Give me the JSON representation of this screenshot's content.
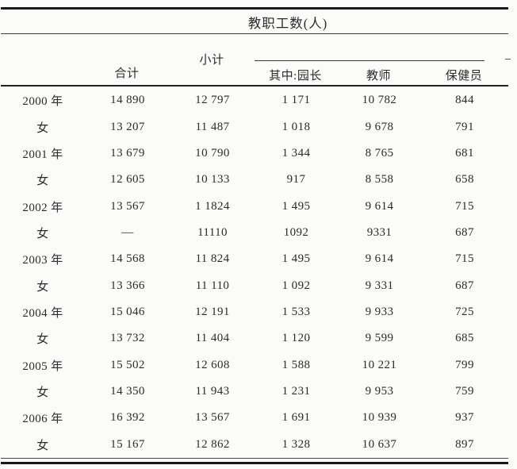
{
  "header": {
    "title": "教职工数(人)",
    "col_total": "合计",
    "col_subtotal": "小计",
    "col_director": "其中:园长",
    "col_teacher": "教师",
    "col_health": "保健员"
  },
  "rows": [
    {
      "label": "2000 年",
      "total": "14 890",
      "subtotal": "12 797",
      "director": "1 171",
      "teacher": "10 782",
      "health": "844"
    },
    {
      "label": "女",
      "total": "13 207",
      "subtotal": "11 487",
      "director": "1 018",
      "teacher": "9 678",
      "health": "791"
    },
    {
      "label": "2001 年",
      "total": "13 679",
      "subtotal": "10 790",
      "director": "1 344",
      "teacher": "8 765",
      "health": "681"
    },
    {
      "label": "女",
      "total": "12 605",
      "subtotal": "10 133",
      "director": "917",
      "teacher": "8 558",
      "health": "658"
    },
    {
      "label": "2002 年",
      "total": "13 567",
      "subtotal": "1 1824",
      "director": "1 495",
      "teacher": "9 614",
      "health": "715"
    },
    {
      "label": "女",
      "total": "—",
      "subtotal": "11110",
      "director": "1092",
      "teacher": "9331",
      "health": "687"
    },
    {
      "label": "2003 年",
      "total": "14 568",
      "subtotal": "11 824",
      "director": "1 495",
      "teacher": "9 614",
      "health": "715"
    },
    {
      "label": "女",
      "total": "13 366",
      "subtotal": "11 110",
      "director": "1 092",
      "teacher": "9 331",
      "health": "687"
    },
    {
      "label": "2004 年",
      "total": "15 046",
      "subtotal": "12 191",
      "director": "1 533",
      "teacher": "9 933",
      "health": "725"
    },
    {
      "label": "女",
      "total": "13 732",
      "subtotal": "11 404",
      "director": "1 120",
      "teacher": "9 599",
      "health": "685"
    },
    {
      "label": "2005 年",
      "total": "15 502",
      "subtotal": "12 608",
      "director": "1 588",
      "teacher": "10 221",
      "health": "799"
    },
    {
      "label": "女",
      "total": "14 350",
      "subtotal": "11 943",
      "director": "1 231",
      "teacher": "9 953",
      "health": "759"
    },
    {
      "label": "2006 年",
      "total": "16 392",
      "subtotal": "13 567",
      "director": "1 691",
      "teacher": "10 939",
      "health": "937"
    },
    {
      "label": "女",
      "total": "15 167",
      "subtotal": "12 862",
      "director": "1 328",
      "teacher": "10 637",
      "health": "897"
    }
  ]
}
